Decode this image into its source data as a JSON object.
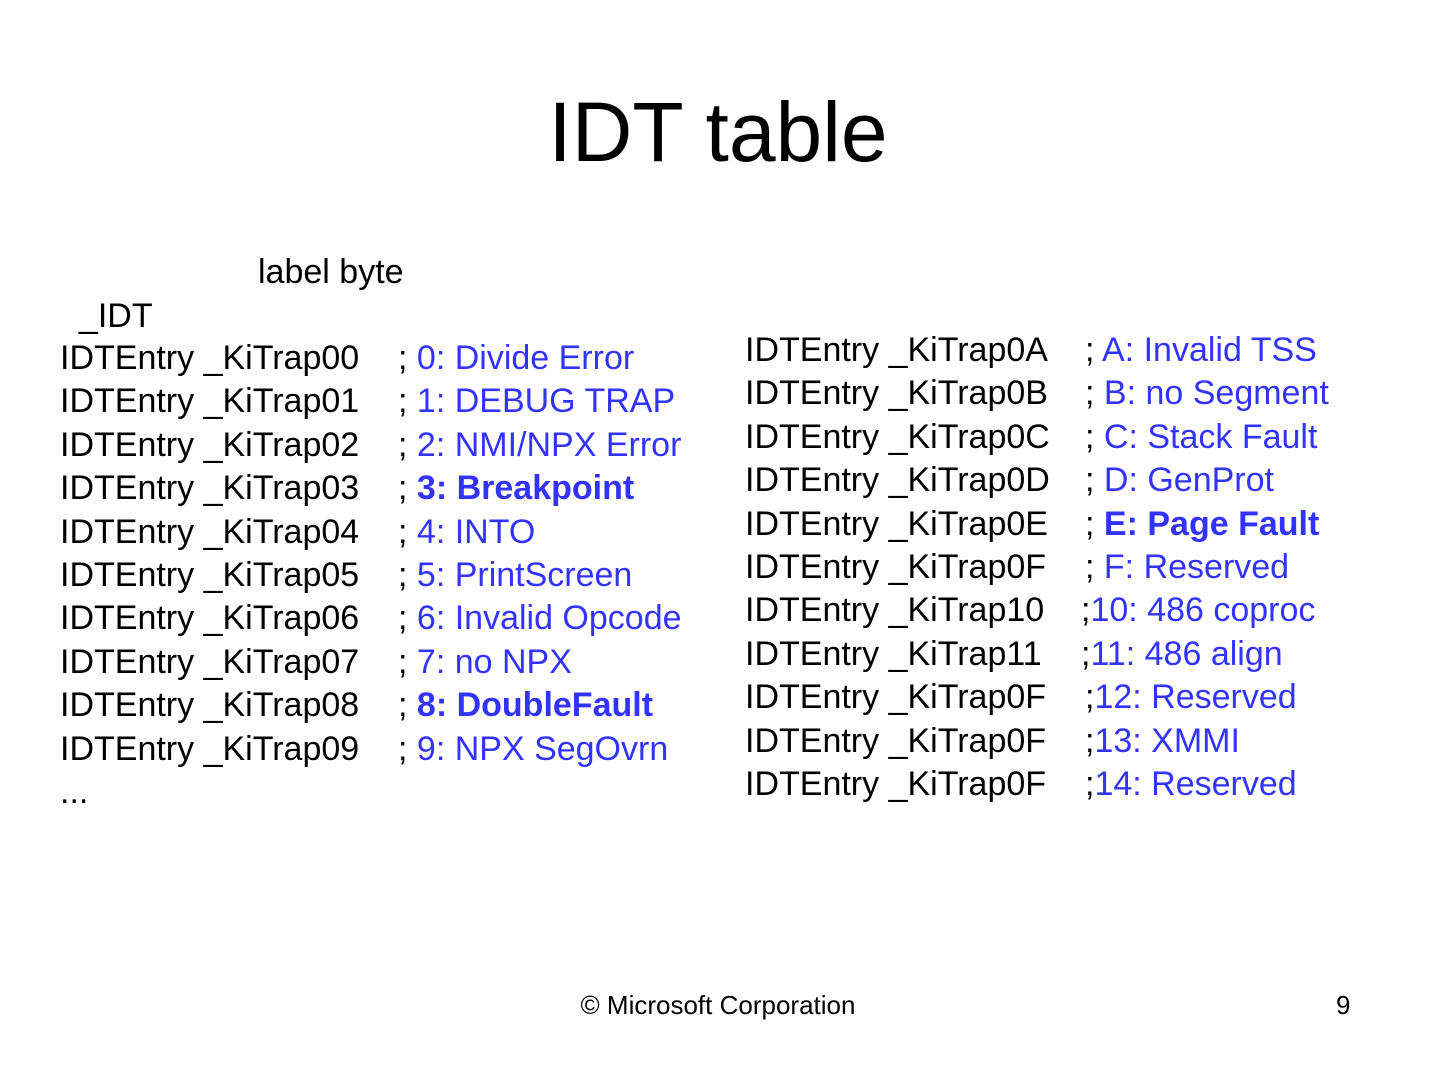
{
  "slide": {
    "title": "IDT table",
    "idt_label": {
      "name": "_IDT",
      "directive": "label byte"
    },
    "left_entries": [
      {
        "code": "IDTEntry _KiTrap00",
        "sep": "; ",
        "desc": "0: Divide Error",
        "bold": false
      },
      {
        "code": "IDTEntry _KiTrap01",
        "sep": "; ",
        "desc": "1: DEBUG TRAP",
        "bold": false
      },
      {
        "code": "IDTEntry _KiTrap02",
        "sep": "; ",
        "desc": "2: NMI/NPX Error",
        "bold": false
      },
      {
        "code": "IDTEntry _KiTrap03",
        "sep": "; ",
        "desc": "3: Breakpoint",
        "bold": true
      },
      {
        "code": "IDTEntry _KiTrap04",
        "sep": "; ",
        "desc": "4: INTO",
        "bold": false
      },
      {
        "code": "IDTEntry _KiTrap05",
        "sep": "; ",
        "desc": "5: PrintScreen",
        "bold": false
      },
      {
        "code": "IDTEntry _KiTrap06",
        "sep": "; ",
        "desc": "6: Invalid Opcode",
        "bold": false
      },
      {
        "code": "IDTEntry _KiTrap07",
        "sep": "; ",
        "desc": "7: no NPX",
        "bold": false
      },
      {
        "code": "IDTEntry _KiTrap08",
        "sep": "; ",
        "desc": "8: DoubleFault",
        "bold": true
      },
      {
        "code": "IDTEntry _KiTrap09",
        "sep": "; ",
        "desc": "9: NPX SegOvrn",
        "bold": false
      }
    ],
    "left_ellipsis": "...",
    "right_entries": [
      {
        "code": "IDTEntry _KiTrap0A",
        "sep": "; ",
        "desc": "A: Invalid TSS",
        "bold": false
      },
      {
        "code": "IDTEntry _KiTrap0B",
        "sep": "; ",
        "desc": "B: no Segment",
        "bold": false
      },
      {
        "code": "IDTEntry _KiTrap0C",
        "sep": "; ",
        "desc": "C: Stack Fault",
        "bold": false
      },
      {
        "code": "IDTEntry _KiTrap0D",
        "sep": "; ",
        "desc": "D: GenProt",
        "bold": false
      },
      {
        "code": "IDTEntry _KiTrap0E",
        "sep": "; ",
        "desc": "E: Page Fault",
        "bold": true
      },
      {
        "code": "IDTEntry _KiTrap0F",
        "sep": "; ",
        "desc": "F: Reserved",
        "bold": false
      },
      {
        "code": "IDTEntry _KiTrap10",
        "sep": ";",
        "desc": "10: 486 coproc",
        "bold": false
      },
      {
        "code": "IDTEntry _KiTrap11",
        "sep": ";",
        "desc": "11: 486 align",
        "bold": false
      },
      {
        "code": "IDTEntry _KiTrap0F",
        "sep": ";",
        "desc": "12: Reserved",
        "bold": false
      },
      {
        "code": "IDTEntry _KiTrap0F",
        "sep": ";",
        "desc": "13: XMMI",
        "bold": false
      },
      {
        "code": "IDTEntry _KiTrap0F",
        "sep": ";",
        "desc": "14: Reserved",
        "bold": false
      }
    ],
    "footer": "© Microsoft Corporation",
    "page_number": "9",
    "colors": {
      "comment": "#3333ff",
      "text": "#000000",
      "background": "#ffffff"
    }
  }
}
